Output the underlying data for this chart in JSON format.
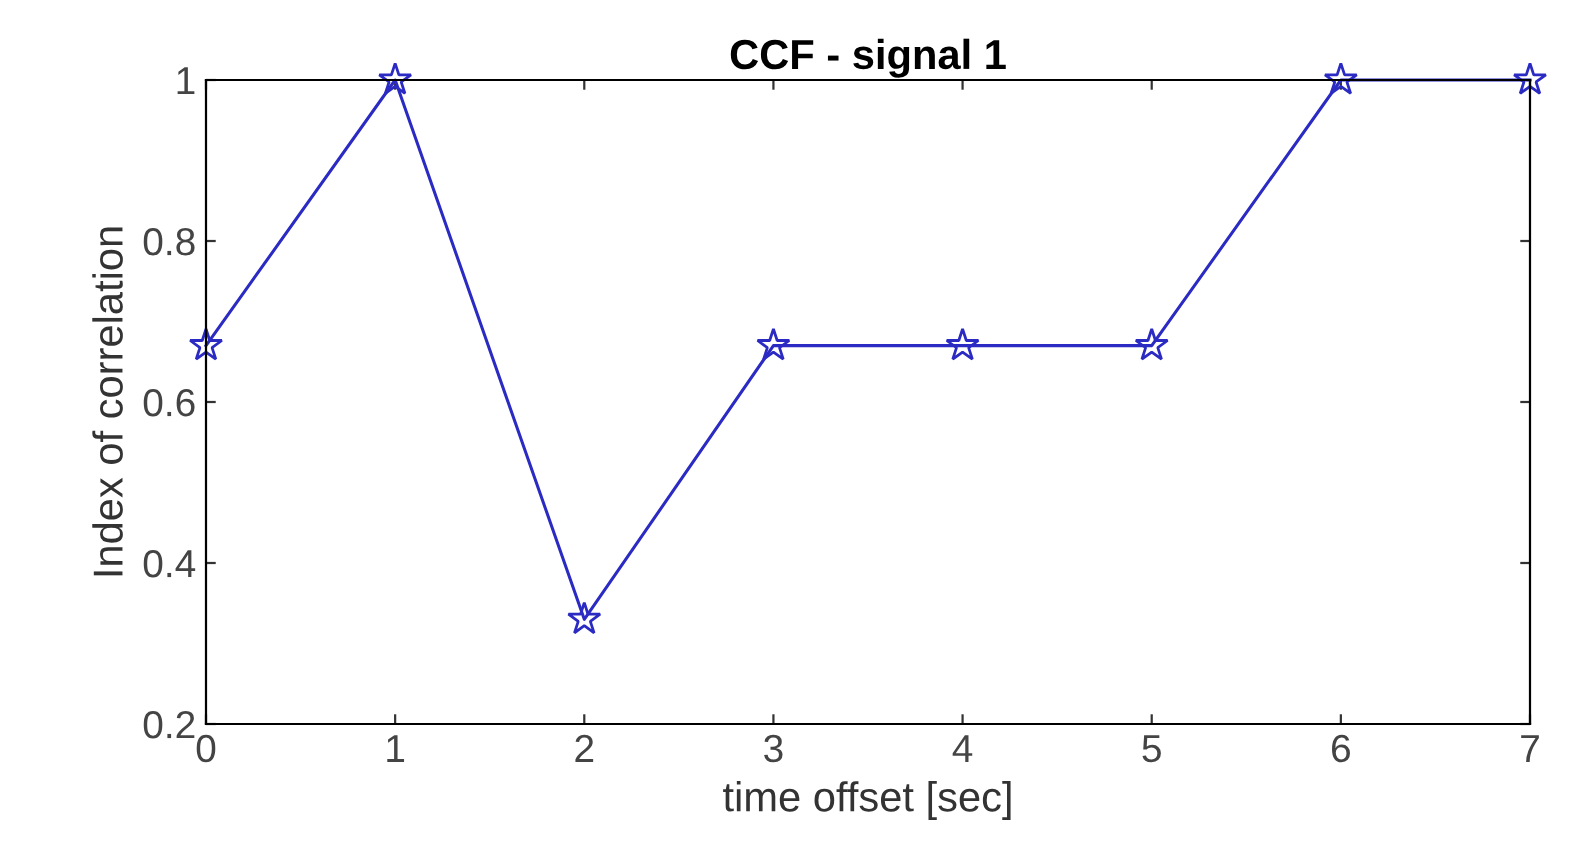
{
  "chart_data": {
    "type": "line",
    "title": "CCF - signal 1",
    "xlabel": "time offset [sec]",
    "ylabel": "Index of correlation",
    "x": [
      0,
      1,
      2,
      3,
      4,
      5,
      6,
      7
    ],
    "series": [
      {
        "color": "#2b2bc4",
        "values": [
          0.67,
          1,
          0.33,
          0.67,
          0.67,
          0.67,
          1,
          1
        ]
      }
    ],
    "xlim": [
      0,
      7
    ],
    "xticks": [
      0,
      1,
      2,
      3,
      4,
      5,
      6,
      7
    ],
    "ylim": [
      0.2,
      1
    ],
    "yticks": [
      0.2,
      0.4,
      0.6,
      0.8,
      1
    ],
    "marker": "star",
    "line_style": "solid",
    "grid": false,
    "legend": false
  }
}
